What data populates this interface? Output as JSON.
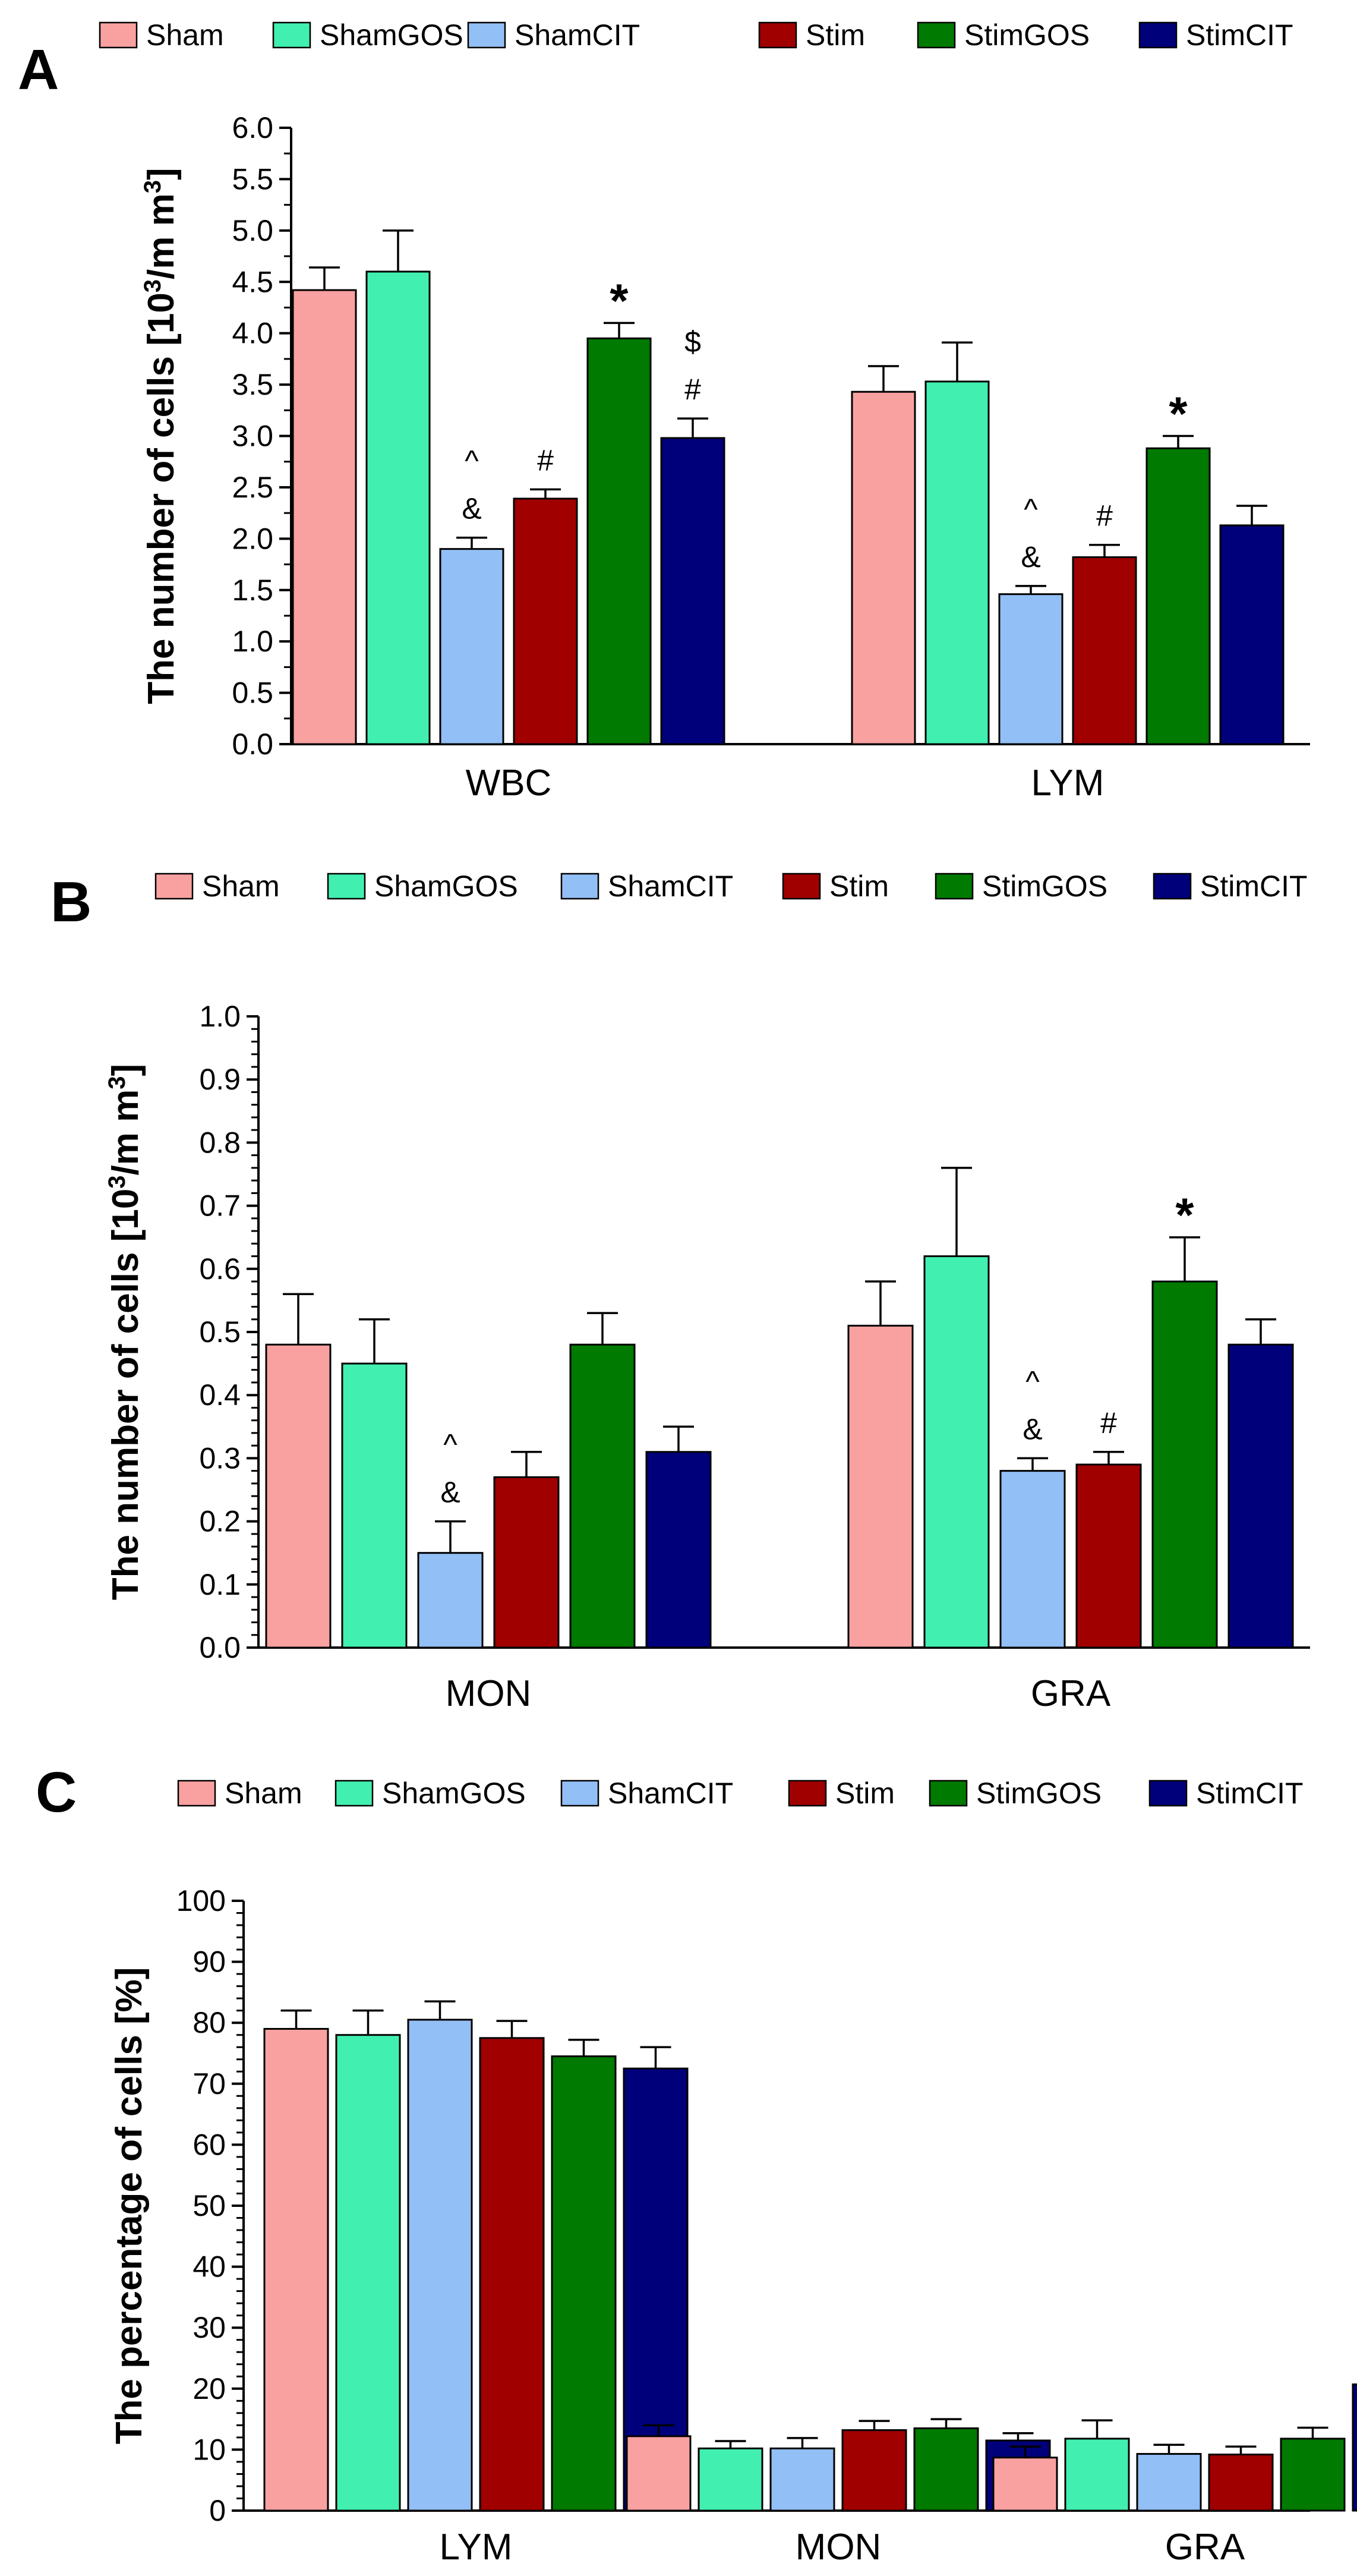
{
  "chart_data": [
    {
      "panel": "A",
      "type": "bar",
      "ylabel": "The number of cells [10³/mm³]",
      "ylabel_main": "The number of cells [10",
      "ylabel_sup1": "3",
      "ylabel_mid": "/m m",
      "ylabel_sup2": "3",
      "ylabel_end": "]",
      "ylim": [
        0,
        6
      ],
      "major_step": 0.5,
      "tick_decimals": 1,
      "minor_per_major": 1,
      "categories": [
        "WBC",
        "LYM"
      ],
      "series": [
        {
          "name": "Sham",
          "values": [
            4.42,
            3.43
          ],
          "errors": [
            0.22,
            0.25
          ]
        },
        {
          "name": "ShamGOS",
          "values": [
            4.6,
            3.53
          ],
          "errors": [
            0.4,
            0.38
          ]
        },
        {
          "name": "ShamCIT",
          "values": [
            1.9,
            1.46
          ],
          "errors": [
            0.11,
            0.08
          ]
        },
        {
          "name": "Stim",
          "values": [
            2.39,
            1.82
          ],
          "errors": [
            0.09,
            0.12
          ]
        },
        {
          "name": "StimGOS",
          "values": [
            3.95,
            2.88
          ],
          "errors": [
            0.15,
            0.12
          ]
        },
        {
          "name": "StimCIT",
          "values": [
            2.98,
            2.13
          ],
          "errors": [
            0.19,
            0.19
          ]
        }
      ],
      "annotations": [
        {
          "category": 0,
          "series": 2,
          "lines": [
            "^",
            "&"
          ]
        },
        {
          "category": 0,
          "series": 3,
          "lines": [
            "#"
          ]
        },
        {
          "category": 0,
          "series": 4,
          "lines": [
            "*"
          ]
        },
        {
          "category": 0,
          "series": 5,
          "lines": [
            "$",
            "#"
          ]
        },
        {
          "category": 1,
          "series": 2,
          "lines": [
            "^",
            "&"
          ]
        },
        {
          "category": 1,
          "series": 3,
          "lines": [
            "#"
          ]
        },
        {
          "category": 1,
          "series": 4,
          "lines": [
            "*"
          ]
        }
      ]
    },
    {
      "panel": "B",
      "type": "bar",
      "ylabel": "The number of cells [10³/mm³]",
      "ylabel_main": "The number of cells [10",
      "ylabel_sup1": "3",
      "ylabel_mid": "/m m",
      "ylabel_sup2": "3",
      "ylabel_end": "]",
      "ylim": [
        0,
        1
      ],
      "major_step": 0.1,
      "tick_decimals": 1,
      "minor_per_major": 4,
      "categories": [
        "MON",
        "GRA"
      ],
      "series": [
        {
          "name": "Sham",
          "values": [
            0.48,
            0.51
          ],
          "errors": [
            0.08,
            0.07
          ]
        },
        {
          "name": "ShamGOS",
          "values": [
            0.45,
            0.62
          ],
          "errors": [
            0.07,
            0.14
          ]
        },
        {
          "name": "ShamCIT",
          "values": [
            0.15,
            0.28
          ],
          "errors": [
            0.05,
            0.02
          ]
        },
        {
          "name": "Stim",
          "values": [
            0.27,
            0.29
          ],
          "errors": [
            0.04,
            0.02
          ]
        },
        {
          "name": "StimGOS",
          "values": [
            0.48,
            0.58
          ],
          "errors": [
            0.05,
            0.07
          ]
        },
        {
          "name": "StimCIT",
          "values": [
            0.31,
            0.48
          ],
          "errors": [
            0.04,
            0.04
          ]
        }
      ],
      "annotations": [
        {
          "category": 0,
          "series": 2,
          "lines": [
            "^",
            "&"
          ]
        },
        {
          "category": 1,
          "series": 2,
          "lines": [
            "^",
            "&"
          ]
        },
        {
          "category": 1,
          "series": 3,
          "lines": [
            "#"
          ]
        },
        {
          "category": 1,
          "series": 4,
          "lines": [
            "*"
          ]
        }
      ]
    },
    {
      "panel": "C",
      "type": "bar",
      "ylabel": "The percentage of cells [%]",
      "ylabel_main": "The percentage of cells [%]",
      "ylim": [
        0,
        100
      ],
      "major_step": 10,
      "tick_decimals": 0,
      "minor_per_major": 4,
      "categories": [
        "LYM",
        "MON",
        "GRA"
      ],
      "series": [
        {
          "name": "Sham",
          "values": [
            79,
            12.2,
            8.7
          ],
          "errors": [
            3,
            1.8,
            1.8
          ]
        },
        {
          "name": "ShamGOS",
          "values": [
            78,
            10.2,
            11.8
          ],
          "errors": [
            4,
            1.2,
            3.0
          ]
        },
        {
          "name": "ShamCIT",
          "values": [
            80.5,
            10.2,
            9.3
          ],
          "errors": [
            3,
            1.7,
            1.5
          ]
        },
        {
          "name": "Stim",
          "values": [
            77.5,
            13.2,
            9.2
          ],
          "errors": [
            2.8,
            1.5,
            1.3
          ]
        },
        {
          "name": "StimGOS",
          "values": [
            74.5,
            13.5,
            11.8
          ],
          "errors": [
            2.7,
            1.5,
            1.8
          ]
        },
        {
          "name": "StimCIT",
          "values": [
            72.5,
            11.5,
            20.7
          ],
          "errors": [
            3.5,
            1.2,
            5.0
          ]
        }
      ],
      "annotations": []
    }
  ],
  "colors": {
    "Sham": "#f9a1a1",
    "ShamGOS": "#41f0b0",
    "ShamCIT": "#92bff5",
    "Stim": "#a00000",
    "StimGOS": "#007a00",
    "StimCIT": "#00007a"
  }
}
